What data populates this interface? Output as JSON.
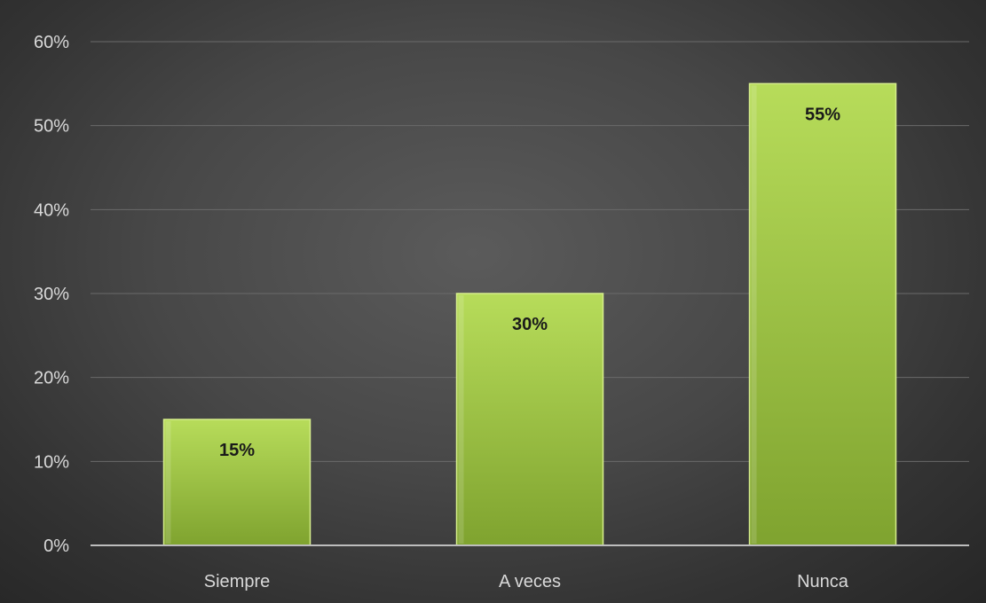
{
  "chart_data": {
    "type": "bar",
    "categories": [
      "Siempre",
      "A veces",
      "Nunca"
    ],
    "values": [
      15,
      30,
      55
    ],
    "data_labels": [
      "15%",
      "30%",
      "55%"
    ],
    "y_ticks": [
      0,
      10,
      20,
      30,
      40,
      50,
      60
    ],
    "y_tick_labels": [
      "0%",
      "10%",
      "20%",
      "30%",
      "40%",
      "50%",
      "60%"
    ],
    "ylim": [
      0,
      60
    ],
    "unit": "%",
    "title": "",
    "xlabel": "",
    "ylabel": "",
    "grid": true,
    "legend": "none",
    "colors": {
      "bar_top": "#b7dc5a",
      "bar_bottom": "#7fa32f",
      "bar_edge": "#d6ee8c",
      "background_center": "#5b5b5b",
      "background_edge": "#262626",
      "gridline": "#6a6a6a",
      "axis": "#bdbdbd",
      "label_text": "#d9d9d9",
      "data_label_text": "#1a1a1a"
    }
  }
}
